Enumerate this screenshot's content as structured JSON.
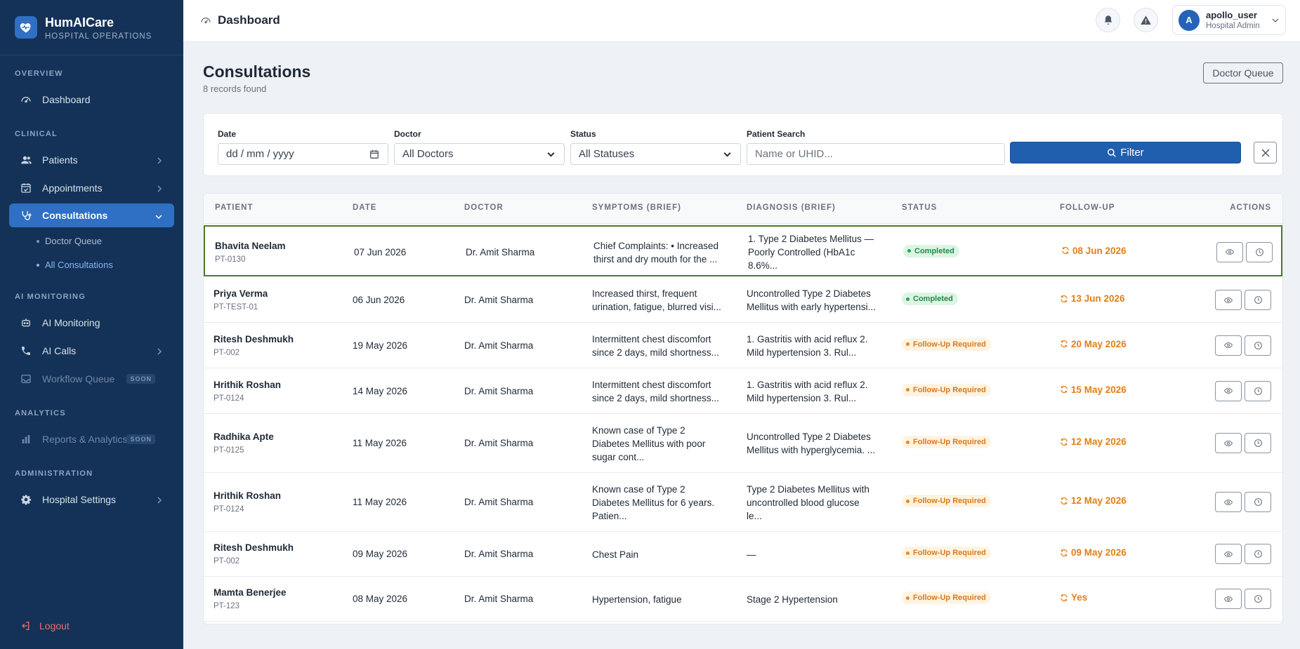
{
  "brand": {
    "name": "HumAICare",
    "subtitle": "HOSPITAL OPERATIONS"
  },
  "sidebar": {
    "sections": {
      "overview": "OVERVIEW",
      "clinical": "CLINICAL",
      "ai_monitoring": "AI MONITORING",
      "analytics": "ANALYTICS",
      "administration": "ADMINISTRATION"
    },
    "items": {
      "dashboard": "Dashboard",
      "patients": "Patients",
      "appointments": "Appointments",
      "consultations": "Consultations",
      "doctor_queue": "Doctor Queue",
      "all_consultations": "All Consultations",
      "ai_monitoring": "AI Monitoring",
      "ai_calls": "AI Calls",
      "workflow_queue": "Workflow Queue",
      "reports": "Reports & Analytics",
      "hospital_settings": "Hospital Settings",
      "soon": "SOON",
      "logout": "Logout"
    }
  },
  "header": {
    "title": "Dashboard",
    "user": {
      "initial": "A",
      "name": "apollo_user",
      "role": "Hospital Admin"
    }
  },
  "page": {
    "title": "Consultations",
    "subtitle": "8 records found",
    "queue_button": "Doctor Queue"
  },
  "filters": {
    "date_label": "Date",
    "date_value": "dd / mm / yyyy",
    "doctor_label": "Doctor",
    "doctor_value": "All Doctors",
    "status_label": "Status",
    "status_value": "All Statuses",
    "search_label": "Patient Search",
    "search_placeholder": "Name or UHID...",
    "filter_button": "Filter"
  },
  "table": {
    "headers": {
      "patient": "PATIENT",
      "date": "DATE",
      "doctor": "DOCTOR",
      "symptoms": "SYMPTOMS (BRIEF)",
      "diagnosis": "DIAGNOSIS (BRIEF)",
      "status": "STATUS",
      "followup": "FOLLOW-UP",
      "actions": "ACTIONS"
    },
    "rows": [
      {
        "name": "Bhavita Neelam",
        "id": "PT-0130",
        "date": "07 Jun 2026",
        "doctor": "Dr. Amit Sharma",
        "symptoms": [
          "Chief Complaints: • Increased",
          "thirst and dry mouth for the ..."
        ],
        "diagnosis": [
          "1. Type 2 Diabetes Mellitus —",
          "Poorly Controlled (HbA1c",
          "8.6%..."
        ],
        "status": "Completed",
        "followup": "08 Jun 2026"
      },
      {
        "name": "Priya Verma",
        "id": "PT-TEST-01",
        "date": "06 Jun 2026",
        "doctor": "Dr. Amit Sharma",
        "symptoms": [
          "Increased thirst, frequent",
          "urination, fatigue, blurred visi..."
        ],
        "diagnosis": [
          "Uncontrolled Type 2 Diabetes",
          "Mellitus with early hypertensi..."
        ],
        "status": "Completed",
        "followup": "13 Jun 2026"
      },
      {
        "name": "Ritesh Deshmukh",
        "id": "PT-002",
        "date": "19 May 2026",
        "doctor": "Dr. Amit Sharma",
        "symptoms": [
          "Intermittent chest discomfort",
          "since 2 days, mild shortness..."
        ],
        "diagnosis": [
          "1. Gastritis with acid reflux 2.",
          "Mild hypertension 3. Rul..."
        ],
        "status": "Follow-Up Required",
        "followup": "20 May 2026"
      },
      {
        "name": "Hrithik Roshan",
        "id": "PT-0124",
        "date": "14 May 2026",
        "doctor": "Dr. Amit Sharma",
        "symptoms": [
          "Intermittent chest discomfort",
          "since 2 days, mild shortness..."
        ],
        "diagnosis": [
          "1. Gastritis with acid reflux 2.",
          "Mild hypertension 3. Rul..."
        ],
        "status": "Follow-Up Required",
        "followup": "15 May 2026"
      },
      {
        "name": "Radhika Apte",
        "id": "PT-0125",
        "date": "11 May 2026",
        "doctor": "Dr. Amit Sharma",
        "symptoms": [
          "Known case of Type 2",
          "Diabetes Mellitus with poor",
          "sugar cont..."
        ],
        "diagnosis": [
          "Uncontrolled Type 2 Diabetes",
          "Mellitus with hyperglycemia. ..."
        ],
        "status": "Follow-Up Required",
        "followup": "12 May 2026"
      },
      {
        "name": "Hrithik Roshan",
        "id": "PT-0124",
        "date": "11 May 2026",
        "doctor": "Dr. Amit Sharma",
        "symptoms": [
          "Known case of Type 2",
          "Diabetes Mellitus for 6 years.",
          "Patien..."
        ],
        "diagnosis": [
          "Type 2 Diabetes Mellitus with",
          "uncontrolled blood glucose",
          "le..."
        ],
        "status": "Follow-Up Required",
        "followup": "12 May 2026"
      },
      {
        "name": "Ritesh Deshmukh",
        "id": "PT-002",
        "date": "09 May 2026",
        "doctor": "Dr. Amit Sharma",
        "symptoms": [
          "Chest Pain"
        ],
        "diagnosis": [
          "—"
        ],
        "status": "Follow-Up Required",
        "followup": "09 May 2026"
      },
      {
        "name": "Mamta Benerjee",
        "id": "PT-123",
        "date": "08 May 2026",
        "doctor": "Dr. Amit Sharma",
        "symptoms": [
          "Hypertension, fatigue"
        ],
        "diagnosis": [
          "Stage 2 Hypertension"
        ],
        "status": "Follow-Up Required",
        "followup": "Yes"
      }
    ]
  },
  "colors": {
    "sidebar": "#143257",
    "accent": "#2f6fc4",
    "completed": "#1e8a4a",
    "followup": "#e27f15",
    "logout": "#ef6b6b"
  }
}
